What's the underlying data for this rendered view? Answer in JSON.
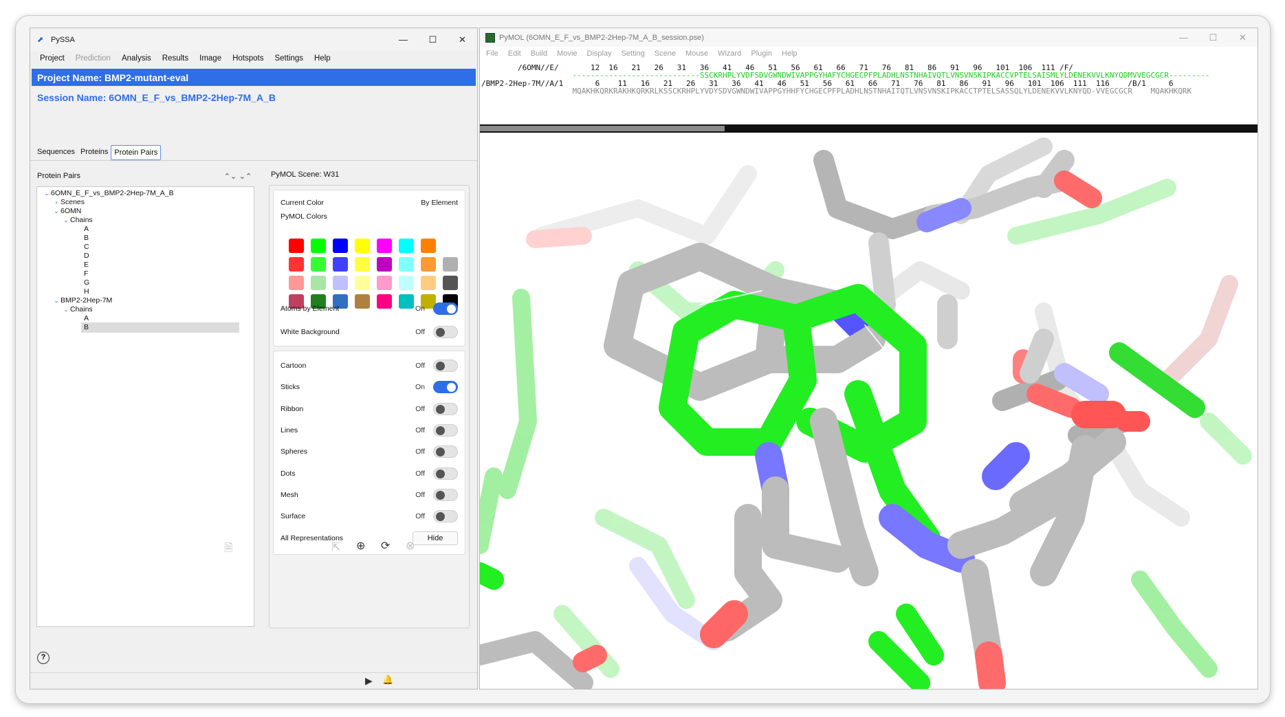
{
  "pyssa": {
    "window_title": "PySSA",
    "window_controls": [
      "—",
      "☐",
      "✕"
    ],
    "menu": [
      {
        "label": "Project",
        "disabled": false
      },
      {
        "label": "Prediction",
        "disabled": true
      },
      {
        "label": "Analysis",
        "disabled": false
      },
      {
        "label": "Results",
        "disabled": false
      },
      {
        "label": "Image",
        "disabled": false
      },
      {
        "label": "Hotspots",
        "disabled": false
      },
      {
        "label": "Settings",
        "disabled": false
      },
      {
        "label": "Help",
        "disabled": false
      }
    ],
    "project_name": "Project Name: BMP2-mutant-eval",
    "session_name": "Session Name: 6OMN_E_F_vs_BMP2-2Hep-7M_A_B",
    "tabs": [
      "Sequences",
      "Proteins",
      "Protein Pairs"
    ],
    "active_tab": "Protein Pairs",
    "left_header": "Protein Pairs",
    "tree": {
      "pair": "6OMN_E_F_vs_BMP2-2Hep-7M_A_B",
      "scenes": "Scenes",
      "protein1": "6OMN",
      "chains_label": "Chains",
      "protein1_chains": [
        "A",
        "B",
        "C",
        "D",
        "E",
        "F",
        "G",
        "H"
      ],
      "protein2": "BMP2-2Hep-7M",
      "protein2_chains": [
        "A",
        "B"
      ],
      "selected_chain": "B"
    },
    "scene_label": "PyMOL Scene: W31",
    "color_panel": {
      "current_color_label": "Current Color",
      "current_color_value": "By Element",
      "pymol_colors_label": "PyMOL Colors",
      "swatch_colors": [
        "#ff0000",
        "#00ff00",
        "#0000ff",
        "#ffff00",
        "#ff00ff",
        "#00ffff",
        "#ff8000",
        null,
        "#ff3333",
        "#33ff33",
        "#4040ff",
        "#ffff40",
        "#c000c0",
        "#80ffff",
        "#ff9933",
        "#b0b0b0",
        "#ff9999",
        "#a8e6a8",
        "#c0c0ff",
        "#ffff99",
        "#ff99cc",
        "#c0ffff",
        "#ffcc80",
        "#555555",
        "#c04060",
        "#208020",
        "#3070c0",
        "#b08040",
        "#ff0080",
        "#00c0c0",
        "#c0b000",
        "#000000"
      ],
      "atoms_by_element": {
        "label": "Atoms by Element",
        "state": "On",
        "on": true
      },
      "white_background": {
        "label": "White Background",
        "state": "Off",
        "on": false
      }
    },
    "representations": [
      {
        "label": "Cartoon",
        "state": "Off",
        "on": false
      },
      {
        "label": "Sticks",
        "state": "On",
        "on": true
      },
      {
        "label": "Ribbon",
        "state": "Off",
        "on": false
      },
      {
        "label": "Lines",
        "state": "Off",
        "on": false
      },
      {
        "label": "Spheres",
        "state": "Off",
        "on": false
      },
      {
        "label": "Dots",
        "state": "Off",
        "on": false
      },
      {
        "label": "Mesh",
        "state": "Off",
        "on": false
      },
      {
        "label": "Surface",
        "state": "Off",
        "on": false
      }
    ],
    "all_representations": {
      "label": "All Representations",
      "button": "Hide"
    },
    "icons": {
      "help": "?",
      "export": "⇱",
      "add": "⊕",
      "sync": "⟳",
      "remove": "⊗",
      "run": "▶",
      "notify": "🔔"
    }
  },
  "pymol": {
    "window_title": "PyMOL (6OMN_E_F_vs_BMP2-2Hep-7M_A_B_session.pse)",
    "window_controls": [
      "—",
      "☐",
      "✕"
    ],
    "menu": [
      "File",
      "Edit",
      "Build",
      "Movie",
      "Display",
      "Setting",
      "Scene",
      "Mouse",
      "Wizard",
      "Plugin",
      "Help"
    ],
    "sequence_lines": [
      {
        "text": "        /6OMN//E/       12  16   21   26   31   36   41   46   51   56   61   66   71   76   81   86   91   96   101  106  111 /F/",
        "cls": "blk"
      },
      {
        "text": "                    ----------------------------SSCKRHPLYVDFSDVGWNDWIVAPPGYHAFYCHGECPFPLADHLNSTNHAIVQTLVNSVNSKIPKACCVPTELSAISMLYLDENEKVVLKNYQDMVVEGCGCR---------",
        "cls": "grn"
      },
      {
        "text": "/BMP2-2Hep-7M//A/1       6    11   16   21   26   31   36   41   46   51   56   61   66   71   76   81   86   91   96   101  106  111  116    /B/1     6",
        "cls": "blk"
      },
      {
        "text": "                    MQAKHKQRKRAKHKQRKRLKSSCKRHPLYVDYSDVGWNDWIVAPPGYHHFYCHGECPFPLADHLNSTNHAITQTLVNSVNSKIPKACCTPTELSASSQLYLDENEKVVLKNYQD-VVEGCGCR    MQAKHKQRK",
        "cls": "gry"
      }
    ]
  }
}
